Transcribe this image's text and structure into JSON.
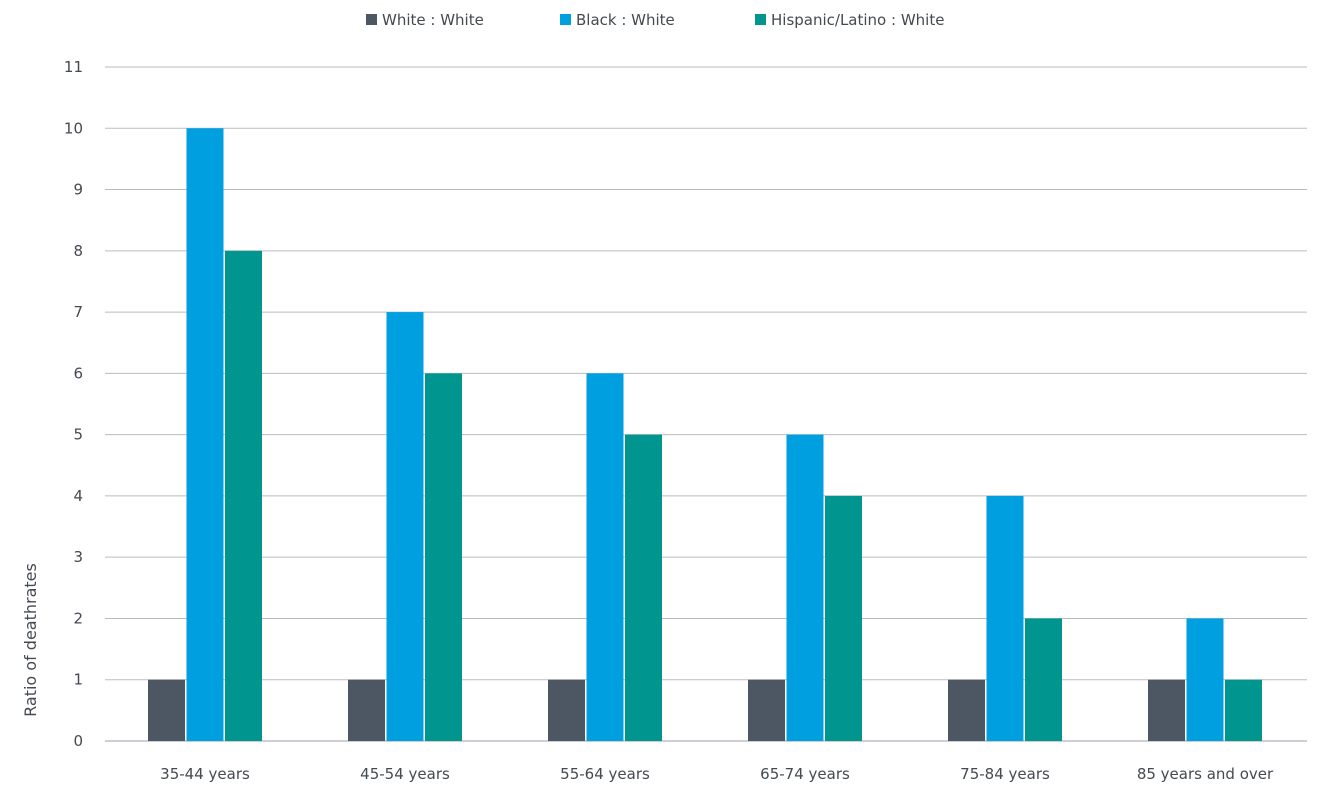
{
  "chart_data": {
    "type": "bar",
    "title": "",
    "xlabel": "",
    "ylabel": "Ratio of deathrates",
    "categories": [
      "35-44 years",
      "45-54 years",
      "55-64 years",
      "65-74 years",
      "75-84 years",
      "85 years and over"
    ],
    "series": [
      {
        "name": "White : White",
        "color": "#4d5764",
        "values": [
          1,
          1,
          1,
          1,
          1,
          1
        ]
      },
      {
        "name": "Black : White",
        "color": "#009fe0",
        "values": [
          10,
          7,
          6,
          5,
          4,
          2
        ]
      },
      {
        "name": "Hispanic/Latino : White",
        "color": "#00968f",
        "values": [
          8,
          6,
          5,
          4,
          2,
          1
        ]
      }
    ],
    "ylim": [
      0,
      11
    ],
    "yticks": [
      0,
      1,
      2,
      3,
      4,
      5,
      6,
      7,
      8,
      9,
      10,
      11
    ],
    "grid": true,
    "legend_position": "top-center"
  }
}
